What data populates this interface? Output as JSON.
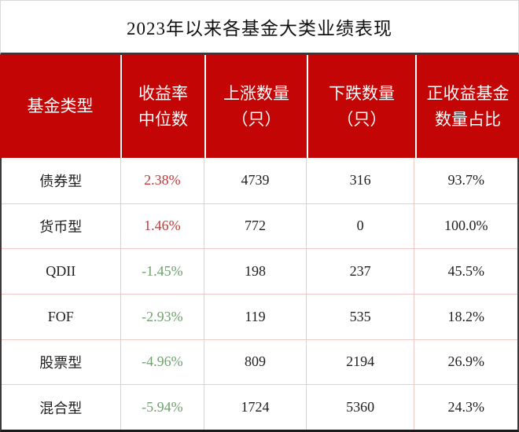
{
  "chart_data": {
    "type": "table",
    "title": "2023年以来各基金大类业绩表现",
    "columns": [
      "基金类型",
      "收益率中位数",
      "上涨数量（只）",
      "下跌数量（只）",
      "正收益基金数量占比"
    ],
    "rows": [
      {
        "fund_type": "债券型",
        "median_return": "2.38%",
        "up_count": "4739",
        "down_count": "316",
        "positive_ratio": "93.7%",
        "trend": "positive"
      },
      {
        "fund_type": "货币型",
        "median_return": "1.46%",
        "up_count": "772",
        "down_count": "0",
        "positive_ratio": "100.0%",
        "trend": "positive"
      },
      {
        "fund_type": "QDII",
        "median_return": "-1.45%",
        "up_count": "198",
        "down_count": "237",
        "positive_ratio": "45.5%",
        "trend": "negative"
      },
      {
        "fund_type": "FOF",
        "median_return": "-2.93%",
        "up_count": "119",
        "down_count": "535",
        "positive_ratio": "18.2%",
        "trend": "negative"
      },
      {
        "fund_type": "股票型",
        "median_return": "-4.96%",
        "up_count": "809",
        "down_count": "2194",
        "positive_ratio": "26.9%",
        "trend": "negative"
      },
      {
        "fund_type": "混合型",
        "median_return": "-5.94%",
        "up_count": "1724",
        "down_count": "5360",
        "positive_ratio": "24.3%",
        "trend": "negative"
      }
    ]
  },
  "colors": {
    "header_bg": "#c30505",
    "header_text": "#ffffff",
    "header_divider": "#ffffff",
    "positive_return": "#c03a3a",
    "negative_return": "#6fa26f",
    "row_border": "#f2c9c4",
    "outer_border": "#3a3a3a",
    "bottom_border": "#1b1b1b",
    "title_border": "#d9d9d9",
    "body_text": "#1f1f1f",
    "title_text": "#111111"
  }
}
